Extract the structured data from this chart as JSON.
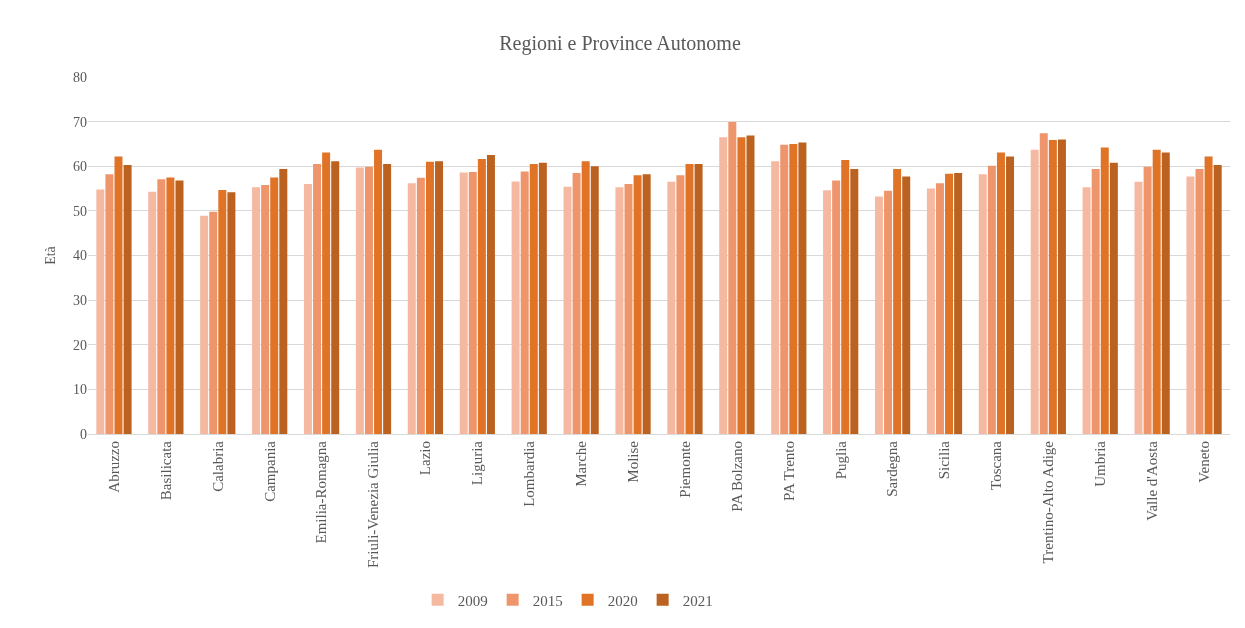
{
  "chart_data": {
    "type": "bar",
    "title": "Regioni e Province Autonome",
    "ylabel": "Età",
    "categories": [
      "Abruzzo",
      "Basilicata",
      "Calabria",
      "Campania",
      "Emilia-Romagna",
      "Friuli-Venezia Giulia",
      "Lazio",
      "Liguria",
      "Lombardia",
      "Marche",
      "Molise",
      "Piemonte",
      "PA Bolzano",
      "PA Trento",
      "Puglia",
      "Sardegna",
      "Sicilia",
      "Toscana",
      "Trentino-Alto Adige",
      "Umbria",
      "Valle d'Aosta",
      "Veneto"
    ],
    "series": [
      {
        "name": "2009",
        "color": "#f5b9a2",
        "values": [
          54.8,
          54.3,
          48.9,
          55.3,
          56.0,
          59.7,
          56.2,
          58.6,
          56.6,
          55.4,
          55.3,
          56.5,
          66.5,
          61.1,
          54.6,
          53.2,
          55.0,
          58.2,
          63.7,
          55.3,
          56.5,
          57.7
        ]
      },
      {
        "name": "2015",
        "color": "#ef956b",
        "values": [
          58.2,
          57.1,
          49.8,
          55.8,
          60.5,
          59.9,
          57.4,
          58.7,
          58.8,
          58.5,
          56.0,
          58.0,
          69.9,
          64.8,
          56.8,
          54.5,
          56.2,
          60.1,
          67.4,
          59.4,
          59.9,
          59.4
        ]
      },
      {
        "name": "2020",
        "color": "#e07326",
        "values": [
          62.2,
          57.5,
          54.7,
          57.5,
          63.1,
          63.7,
          61.0,
          61.6,
          60.5,
          61.1,
          58.0,
          60.5,
          66.5,
          65.0,
          61.4,
          59.4,
          58.3,
          63.1,
          65.9,
          64.2,
          63.7,
          62.2
        ]
      },
      {
        "name": "2021",
        "color": "#bb6220",
        "values": [
          60.3,
          56.8,
          54.2,
          59.4,
          61.1,
          60.5,
          61.1,
          62.5,
          60.8,
          60.0,
          58.2,
          60.5,
          66.9,
          65.3,
          59.4,
          57.7,
          58.5,
          62.2,
          66.0,
          60.8,
          63.1,
          60.3
        ]
      }
    ],
    "ylim": [
      0,
      80
    ],
    "yticks": [
      0,
      10,
      20,
      30,
      40,
      50,
      60,
      70,
      80
    ],
    "grid": "y",
    "legend": "bottom"
  }
}
